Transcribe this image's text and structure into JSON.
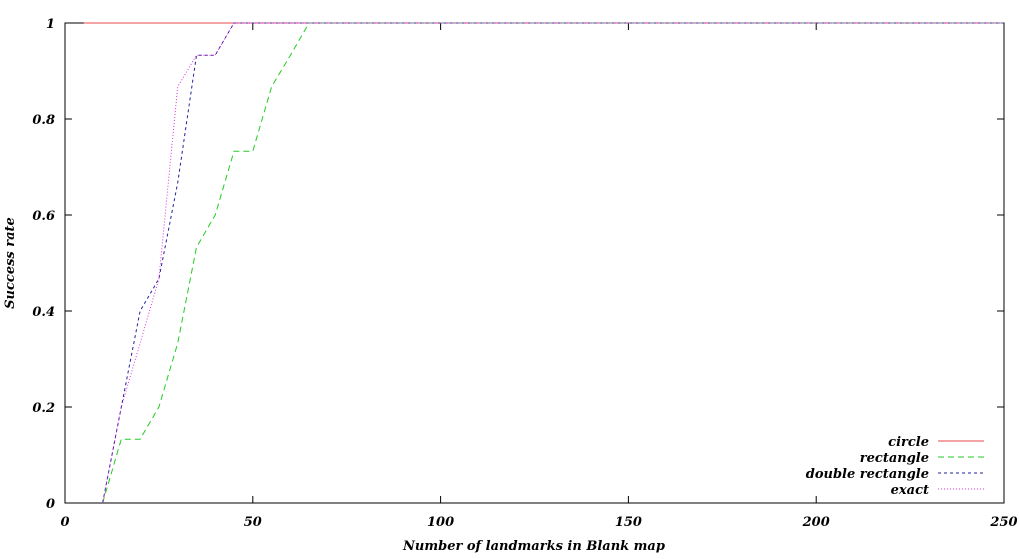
{
  "chart_data": {
    "type": "line",
    "title": "",
    "xlabel": "Number of landmarks in Blank map",
    "ylabel": "Success rate",
    "xlim": [
      0,
      250
    ],
    "ylim": [
      0,
      1
    ],
    "x_ticks": [
      "0",
      "50",
      "100",
      "150",
      "200",
      "250"
    ],
    "y_ticks": [
      "0",
      "0.2",
      "0.4",
      "0.6",
      "0.8",
      "1"
    ],
    "grid": false,
    "legend_position": "bottom-right",
    "series": [
      {
        "name": "circle",
        "color": "#e8484a",
        "dash": "solid",
        "points": [
          [
            5,
            1
          ],
          [
            250,
            1
          ]
        ]
      },
      {
        "name": "rectangle",
        "color": "#22cc22",
        "dash": "dashed",
        "points": [
          [
            10,
            0
          ],
          [
            15,
            0.133
          ],
          [
            20,
            0.133
          ],
          [
            25,
            0.2
          ],
          [
            30,
            0.333
          ],
          [
            35,
            0.533
          ],
          [
            40,
            0.6
          ],
          [
            45,
            0.733
          ],
          [
            50,
            0.733
          ],
          [
            55,
            0.867
          ],
          [
            60,
            0.933
          ],
          [
            65,
            1
          ],
          [
            250,
            1
          ]
        ]
      },
      {
        "name": "double rectangle",
        "color": "#22229a",
        "dash": "short-dashed",
        "points": [
          [
            10,
            0
          ],
          [
            15,
            0.2
          ],
          [
            20,
            0.4
          ],
          [
            25,
            0.467
          ],
          [
            30,
            0.667
          ],
          [
            35,
            0.933
          ],
          [
            40,
            0.933
          ],
          [
            45,
            1
          ],
          [
            250,
            1
          ]
        ]
      },
      {
        "name": "exact",
        "color": "#dd33dd",
        "dash": "dotted",
        "points": [
          [
            10,
            0
          ],
          [
            15,
            0.2
          ],
          [
            20,
            0.333
          ],
          [
            25,
            0.467
          ],
          [
            30,
            0.867
          ],
          [
            35,
            0.933
          ],
          [
            40,
            0.933
          ],
          [
            45,
            1
          ],
          [
            250,
            1
          ]
        ]
      }
    ]
  }
}
